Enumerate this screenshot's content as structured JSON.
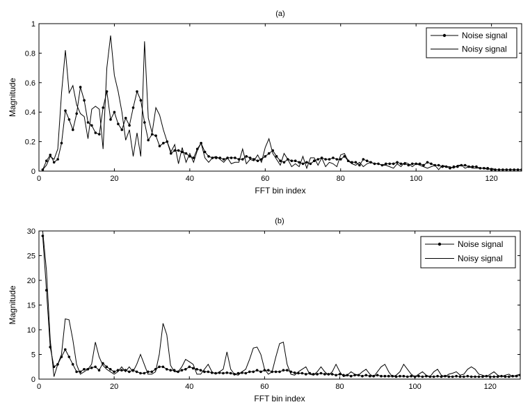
{
  "chart_data": [
    {
      "type": "line",
      "title": "(a)",
      "xlabel": "FFT bin index",
      "ylabel": "Magnitude",
      "xlim": [
        0,
        128
      ],
      "ylim": [
        0,
        1
      ],
      "xticks": [
        "0",
        "20",
        "40",
        "60",
        "80",
        "100",
        "120"
      ],
      "yticks": [
        "0",
        "0.2",
        "0.4",
        "0.6",
        "0.8",
        "1"
      ],
      "legend": "top-right",
      "series": [
        {
          "name": "Noise signal",
          "marker": "dot",
          "x": [
            1,
            2,
            3,
            4,
            5,
            6,
            7,
            8,
            9,
            10,
            11,
            12,
            13,
            14,
            15,
            16,
            17,
            18,
            19,
            20,
            21,
            22,
            23,
            24,
            25,
            26,
            27,
            28,
            29,
            30,
            31,
            32,
            33,
            34,
            35,
            36,
            37,
            38,
            39,
            40,
            41,
            42,
            43,
            44,
            45,
            46,
            47,
            48,
            49,
            50,
            51,
            52,
            53,
            54,
            55,
            56,
            57,
            58,
            59,
            60,
            61,
            62,
            63,
            64,
            65,
            66,
            67,
            68,
            69,
            70,
            71,
            72,
            73,
            74,
            75,
            76,
            77,
            78,
            79,
            80,
            81,
            82,
            83,
            84,
            85,
            86,
            87,
            88,
            89,
            90,
            91,
            92,
            93,
            94,
            95,
            96,
            97,
            98,
            99,
            100,
            101,
            102,
            103,
            104,
            105,
            106,
            107,
            108,
            109,
            110,
            111,
            112,
            113,
            114,
            115,
            116,
            117,
            118,
            119,
            120,
            121,
            122,
            123,
            124,
            125,
            126,
            127,
            128
          ],
          "values": [
            0.01,
            0.07,
            0.11,
            0.06,
            0.08,
            0.19,
            0.41,
            0.35,
            0.28,
            0.39,
            0.57,
            0.48,
            0.33,
            0.31,
            0.26,
            0.25,
            0.43,
            0.54,
            0.35,
            0.4,
            0.32,
            0.28,
            0.36,
            0.31,
            0.43,
            0.54,
            0.48,
            0.33,
            0.21,
            0.25,
            0.24,
            0.17,
            0.19,
            0.2,
            0.12,
            0.14,
            0.14,
            0.13,
            0.12,
            0.1,
            0.09,
            0.15,
            0.19,
            0.13,
            0.1,
            0.09,
            0.09,
            0.09,
            0.08,
            0.09,
            0.09,
            0.09,
            0.08,
            0.08,
            0.1,
            0.09,
            0.08,
            0.07,
            0.08,
            0.1,
            0.12,
            0.14,
            0.1,
            0.07,
            0.06,
            0.08,
            0.07,
            0.07,
            0.06,
            0.05,
            0.06,
            0.05,
            0.07,
            0.08,
            0.09,
            0.08,
            0.08,
            0.09,
            0.08,
            0.08,
            0.1,
            0.07,
            0.06,
            0.06,
            0.04,
            0.08,
            0.07,
            0.06,
            0.05,
            0.05,
            0.04,
            0.05,
            0.05,
            0.05,
            0.06,
            0.05,
            0.05,
            0.04,
            0.05,
            0.05,
            0.05,
            0.04,
            0.06,
            0.05,
            0.04,
            0.04,
            0.03,
            0.03,
            0.02,
            0.03,
            0.03,
            0.04,
            0.04,
            0.03,
            0.03,
            0.03,
            0.02,
            0.02,
            0.02,
            0.01,
            0.01,
            0.01,
            0.01,
            0.01,
            0.01,
            0.01,
            0.01,
            0.01
          ]
        },
        {
          "name": "Noisy signal",
          "marker": "none",
          "x": [
            1,
            2,
            3,
            4,
            5,
            6,
            7,
            8,
            9,
            10,
            11,
            12,
            13,
            14,
            15,
            16,
            17,
            18,
            19,
            20,
            21,
            22,
            23,
            24,
            25,
            26,
            27,
            28,
            29,
            30,
            31,
            32,
            33,
            34,
            35,
            36,
            37,
            38,
            39,
            40,
            41,
            42,
            43,
            44,
            45,
            46,
            47,
            48,
            49,
            50,
            51,
            52,
            53,
            54,
            55,
            56,
            57,
            58,
            59,
            60,
            61,
            62,
            63,
            64,
            65,
            66,
            67,
            68,
            69,
            70,
            71,
            72,
            73,
            74,
            75,
            76,
            77,
            78,
            79,
            80,
            81,
            82,
            83,
            84,
            85,
            86,
            87,
            88,
            89,
            90,
            91,
            92,
            93,
            94,
            95,
            96,
            97,
            98,
            99,
            100,
            101,
            102,
            103,
            104,
            105,
            106,
            107,
            108,
            109,
            110,
            111,
            112,
            113,
            114,
            115,
            116,
            117,
            118,
            119,
            120,
            121,
            122,
            123,
            124,
            125,
            126,
            127,
            128
          ],
          "values": [
            0.01,
            0.04,
            0.1,
            0.08,
            0.15,
            0.53,
            0.82,
            0.53,
            0.58,
            0.45,
            0.39,
            0.37,
            0.22,
            0.42,
            0.44,
            0.42,
            0.15,
            0.7,
            0.92,
            0.65,
            0.54,
            0.4,
            0.21,
            0.28,
            0.1,
            0.26,
            0.1,
            0.88,
            0.36,
            0.26,
            0.43,
            0.38,
            0.28,
            0.2,
            0.13,
            0.18,
            0.05,
            0.16,
            0.06,
            0.12,
            0.06,
            0.14,
            0.19,
            0.09,
            0.06,
            0.09,
            0.1,
            0.08,
            0.06,
            0.09,
            0.05,
            0.06,
            0.06,
            0.15,
            0.05,
            0.08,
            0.07,
            0.11,
            0.06,
            0.16,
            0.22,
            0.12,
            0.08,
            0.04,
            0.12,
            0.08,
            0.03,
            0.05,
            0.03,
            0.1,
            0.02,
            0.09,
            0.09,
            0.04,
            0.09,
            0.03,
            0.06,
            0.05,
            0.03,
            0.11,
            0.12,
            0.07,
            0.05,
            0.04,
            0.06,
            0.03,
            0.05,
            0.06,
            0.05,
            0.05,
            0.04,
            0.04,
            0.03,
            0.02,
            0.05,
            0.03,
            0.06,
            0.05,
            0.03,
            0.05,
            0.04,
            0.03,
            0.02,
            0.03,
            0.04,
            0.01,
            0.04,
            0.03,
            0.03,
            0.02,
            0.04,
            0.04,
            0.02,
            0.03,
            0.02,
            0.02,
            0.02,
            0.02,
            0.01,
            0.02,
            0.01,
            0.01,
            0.01,
            0.01,
            0.01,
            0.01,
            0.01,
            0.01
          ]
        }
      ]
    },
    {
      "type": "line",
      "title": "(b)",
      "xlabel": "FFT bin index",
      "ylabel": "Magnitude",
      "xlim": [
        0,
        128
      ],
      "ylim": [
        0,
        30
      ],
      "xticks": [
        "0",
        "20",
        "40",
        "60",
        "80",
        "100",
        "120"
      ],
      "yticks": [
        "0",
        "5",
        "10",
        "15",
        "20",
        "25",
        "30"
      ],
      "legend": "top-right",
      "series": [
        {
          "name": "Noise signal",
          "marker": "dot",
          "x": [
            1,
            2,
            3,
            4,
            5,
            6,
            7,
            8,
            9,
            10,
            11,
            12,
            13,
            14,
            15,
            16,
            17,
            18,
            19,
            20,
            21,
            22,
            23,
            24,
            25,
            26,
            27,
            28,
            29,
            30,
            31,
            32,
            33,
            34,
            35,
            36,
            37,
            38,
            39,
            40,
            41,
            42,
            43,
            44,
            45,
            46,
            47,
            48,
            49,
            50,
            51,
            52,
            53,
            54,
            55,
            56,
            57,
            58,
            59,
            60,
            61,
            62,
            63,
            64,
            65,
            66,
            67,
            68,
            69,
            70,
            71,
            72,
            73,
            74,
            75,
            76,
            77,
            78,
            79,
            80,
            81,
            82,
            83,
            84,
            85,
            86,
            87,
            88,
            89,
            90,
            91,
            92,
            93,
            94,
            95,
            96,
            97,
            98,
            99,
            100,
            101,
            102,
            103,
            104,
            105,
            106,
            107,
            108,
            109,
            110,
            111,
            112,
            113,
            114,
            115,
            116,
            117,
            118,
            119,
            120,
            121,
            122,
            123,
            124,
            125,
            126,
            127,
            128
          ],
          "values": [
            29,
            18,
            6.5,
            2.5,
            3,
            4.5,
            6,
            4.5,
            3,
            1.5,
            1.5,
            2,
            2,
            2.3,
            2.5,
            1.8,
            3.2,
            2.5,
            2,
            1.5,
            1.8,
            1.8,
            1.8,
            1.5,
            1.8,
            1.5,
            1.2,
            1.2,
            1.5,
            1.5,
            2,
            2.5,
            2.5,
            2,
            1.8,
            1.8,
            1.5,
            1.8,
            2,
            2.5,
            2.2,
            2,
            1.8,
            1.5,
            1.5,
            1.3,
            1.2,
            1.3,
            1.2,
            1.3,
            1.2,
            1,
            1.2,
            1.3,
            1.2,
            1.5,
            1.5,
            1.8,
            1.5,
            1.8,
            1.8,
            1.5,
            1.5,
            1.5,
            1.8,
            1.8,
            1.5,
            1.3,
            1.2,
            1.2,
            1,
            1.2,
            1,
            1,
            1.2,
            1,
            1,
            1,
            0.8,
            1,
            0.8,
            0.8,
            0.6,
            0.8,
            0.8,
            0.6,
            0.8,
            0.6,
            0.6,
            0.8,
            0.6,
            0.6,
            0.6,
            0.6,
            0.5,
            0.6,
            0.6,
            0.5,
            0.6,
            0.5,
            0.6,
            0.5,
            0.6,
            0.5,
            0.5,
            0.6,
            0.5,
            0.6,
            0.5,
            0.5,
            0.6,
            0.5,
            0.5,
            0.6,
            0.5,
            0.5,
            0.5,
            0.5,
            0.6,
            0.5,
            0.5,
            0.5,
            0.6,
            0.5,
            0.5,
            0.6,
            0.6,
            0.8
          ]
        },
        {
          "name": "Noisy signal",
          "marker": "none",
          "x": [
            1,
            2,
            3,
            4,
            5,
            6,
            7,
            8,
            9,
            10,
            11,
            12,
            13,
            14,
            15,
            16,
            17,
            18,
            19,
            20,
            21,
            22,
            23,
            24,
            25,
            26,
            27,
            28,
            29,
            30,
            31,
            32,
            33,
            34,
            35,
            36,
            37,
            38,
            39,
            40,
            41,
            42,
            43,
            44,
            45,
            46,
            47,
            48,
            49,
            50,
            51,
            52,
            53,
            54,
            55,
            56,
            57,
            58,
            59,
            60,
            61,
            62,
            63,
            64,
            65,
            66,
            67,
            68,
            69,
            70,
            71,
            72,
            73,
            74,
            75,
            76,
            77,
            78,
            79,
            80,
            81,
            82,
            83,
            84,
            85,
            86,
            87,
            88,
            89,
            90,
            91,
            92,
            93,
            94,
            95,
            96,
            97,
            98,
            99,
            100,
            101,
            102,
            103,
            104,
            105,
            106,
            107,
            108,
            109,
            110,
            111,
            112,
            113,
            114,
            115,
            116,
            117,
            118,
            119,
            120,
            121,
            122,
            123,
            124,
            125,
            126,
            127,
            128
          ],
          "values": [
            30,
            22,
            8,
            0.5,
            3,
            5,
            12.2,
            12,
            8,
            3,
            1,
            1.5,
            2,
            3,
            7.5,
            4.5,
            2.8,
            2,
            1.5,
            1,
            1.5,
            2.5,
            1.5,
            2.5,
            1.5,
            3,
            5,
            3,
            1,
            1,
            1.5,
            5,
            11.3,
            9,
            2.8,
            1.5,
            1.5,
            2.5,
            4,
            3.5,
            3,
            1,
            1,
            2,
            3,
            1.5,
            1,
            1.5,
            2,
            5.5,
            2,
            1,
            0.8,
            1.5,
            2,
            4,
            6.3,
            6.5,
            5,
            2,
            1,
            1.5,
            4.5,
            7.2,
            7.5,
            3,
            1,
            0.8,
            1.5,
            2,
            2.5,
            1,
            0.8,
            1.5,
            2.5,
            1.5,
            0.8,
            1.5,
            3,
            1.5,
            0.5,
            0.8,
            1.5,
            1,
            0.8,
            1.5,
            2,
            1,
            0.5,
            1.5,
            2.5,
            3,
            1.5,
            0.5,
            0.8,
            1.5,
            3,
            2,
            1,
            0.5,
            1,
            1.5,
            0.8,
            0.5,
            1.5,
            2,
            0.8,
            0.5,
            1,
            1.2,
            1.5,
            0.8,
            1,
            2,
            2.5,
            2,
            1,
            0.8,
            0.5,
            1,
            1.5,
            0.8,
            0.5,
            0.8,
            1,
            0.5,
            0.8,
            1
          ]
        }
      ]
    }
  ]
}
